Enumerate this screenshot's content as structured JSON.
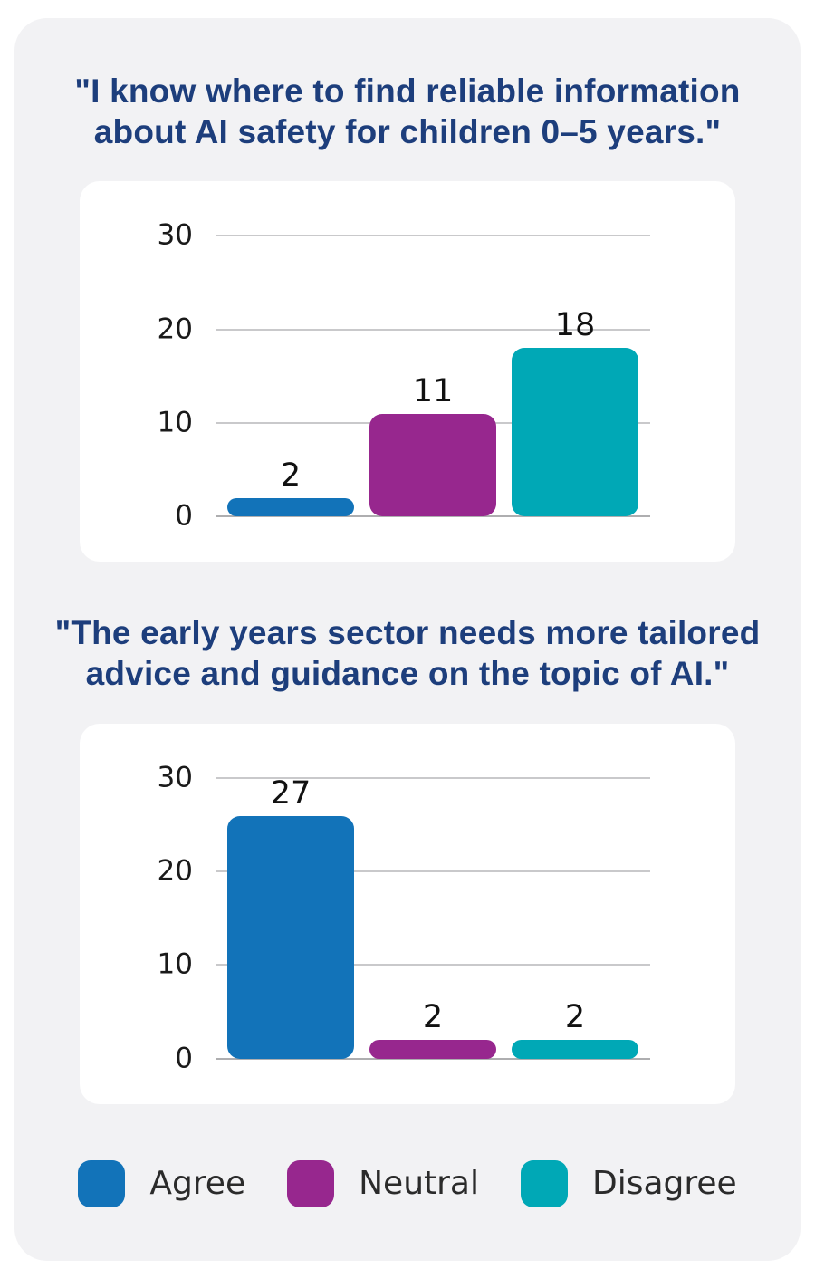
{
  "page": {
    "background": "#ffffff",
    "panel_background": "#f2f2f4",
    "card_background": "#ffffff"
  },
  "colors": {
    "title_text": "#1d3e7c",
    "tick_text": "#1a1a1a",
    "data_label_text": "#111111",
    "legend_text": "#2b2b2b",
    "gridline": "#c9c9cb",
    "axis_zero_line": "#aeaeb0",
    "agree_blue": "#1273b9",
    "neutral_purple": "#97278e",
    "disagree_teal": "#00a8b6"
  },
  "chart_data": [
    {
      "type": "bar",
      "title": "\"I know where to find reliable information about AI safety for children 0–5 years.\"",
      "title_display": "\"I know where to find reliable information\nabout AI safety for children 0–5 years.\"",
      "categories": [
        "Agree",
        "Neutral",
        "Disagree"
      ],
      "values": [
        2,
        11,
        18
      ],
      "bar_colors": [
        "#1273b9",
        "#97278e",
        "#00a8b6"
      ],
      "xlabel": "",
      "ylabel": "",
      "ylim": [
        0,
        30
      ],
      "yticks": [
        30,
        20,
        10,
        0
      ],
      "grid": true,
      "data_labels": true,
      "legend_position": "shared-bottom"
    },
    {
      "type": "bar",
      "title": "\"The early years sector needs more tailored advice and guidance on the topic of AI.\"",
      "title_display": "\"The early years sector needs more tailored\nadvice and guidance on the topic of AI.\"",
      "categories": [
        "Agree",
        "Neutral",
        "Disagree"
      ],
      "values": [
        27,
        2,
        2
      ],
      "bar_colors": [
        "#1273b9",
        "#97278e",
        "#00a8b6"
      ],
      "xlabel": "",
      "ylabel": "",
      "ylim": [
        0,
        30
      ],
      "yticks": [
        30,
        20,
        10,
        0
      ],
      "grid": true,
      "data_labels": true,
      "legend_position": "shared-bottom"
    }
  ],
  "legend": {
    "position": "bottom",
    "items": [
      {
        "label": "Agree",
        "color": "#1273b9"
      },
      {
        "label": "Neutral",
        "color": "#97278e"
      },
      {
        "label": "Disagree",
        "color": "#00a8b6"
      }
    ]
  }
}
